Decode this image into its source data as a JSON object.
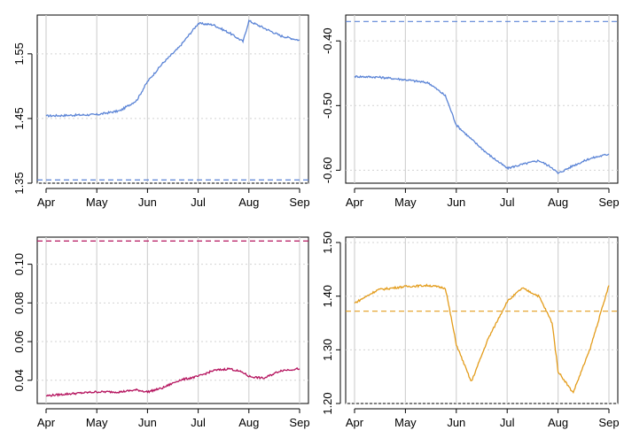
{
  "chart_data": [
    {
      "type": "line",
      "color": "#5b84d6",
      "x_ticks": [
        "Apr",
        "May",
        "Jun",
        "Jul",
        "Aug",
        "Sep"
      ],
      "x_range": [
        "Apr",
        "Sep"
      ],
      "y_ticks": [
        1.35,
        1.45,
        1.55
      ],
      "ylim": [
        1.35,
        1.61
      ],
      "grid": true,
      "reference_line": 1.355,
      "series": [
        {
          "x": [
            "Apr",
            "Apr 15",
            "May 01",
            "May 15",
            "May 25",
            "Jun 01",
            "Jun 10",
            "Jun 20",
            "Jul 01",
            "Jul 10",
            "Jul 20",
            "Jul 28",
            "Aug 01",
            "Aug 10",
            "Aug 20",
            "Sep"
          ],
          "values": [
            1.454,
            1.455,
            1.456,
            1.462,
            1.478,
            1.507,
            1.535,
            1.56,
            1.597,
            1.595,
            1.582,
            1.569,
            1.601,
            1.59,
            1.578,
            1.571
          ]
        }
      ]
    },
    {
      "type": "line",
      "color": "#5b84d6",
      "x_ticks": [
        "Apr",
        "May",
        "Jun",
        "Jul",
        "Aug",
        "Sep"
      ],
      "x_range": [
        "Apr",
        "Sep"
      ],
      "y_ticks": [
        -0.6,
        -0.5,
        -0.4
      ],
      "ylim": [
        -0.62,
        -0.36
      ],
      "grid": true,
      "reference_line": -0.37,
      "series": [
        {
          "x": [
            "Apr",
            "Apr 15",
            "May 01",
            "May 15",
            "May 25",
            "Jun 01",
            "Jun 10",
            "Jun 20",
            "Jul 01",
            "Jul 10",
            "Jul 20",
            "Jul 28",
            "Aug 01",
            "Aug 10",
            "Aug 20",
            "Sep"
          ],
          "values": [
            -0.455,
            -0.456,
            -0.46,
            -0.465,
            -0.485,
            -0.53,
            -0.552,
            -0.575,
            -0.597,
            -0.591,
            -0.585,
            -0.596,
            -0.605,
            -0.593,
            -0.582,
            -0.575
          ]
        }
      ]
    },
    {
      "type": "line",
      "color": "#b5135e",
      "x_ticks": [
        "Apr",
        "May",
        "Jun",
        "Jul",
        "Aug",
        "Sep"
      ],
      "x_range": [
        "Apr",
        "Sep"
      ],
      "y_ticks": [
        0.04,
        0.06,
        0.08,
        0.1
      ],
      "ylim": [
        0.028,
        0.114
      ],
      "grid": true,
      "reference_line": 0.112,
      "series": [
        {
          "x": [
            "Apr",
            "Apr 15",
            "May 01",
            "May 15",
            "May 25",
            "Jun 01",
            "Jun 10",
            "Jun 20",
            "Jul 01",
            "Jul 10",
            "Jul 20",
            "Jul 28",
            "Aug 01",
            "Aug 10",
            "Aug 20",
            "Sep"
          ],
          "values": [
            0.032,
            0.033,
            0.034,
            0.034,
            0.035,
            0.034,
            0.036,
            0.04,
            0.042,
            0.045,
            0.046,
            0.044,
            0.042,
            0.041,
            0.045,
            0.046
          ]
        }
      ]
    },
    {
      "type": "line",
      "color": "#e39c1b",
      "x_ticks": [
        "Apr",
        "May",
        "Jun",
        "Jul",
        "Aug",
        "Sep"
      ],
      "x_range": [
        "Apr",
        "Sep"
      ],
      "y_ticks": [
        1.2,
        1.3,
        1.4,
        1.5
      ],
      "ylim": [
        1.2,
        1.51
      ],
      "grid": true,
      "reference_line": 1.372,
      "series": [
        {
          "x": [
            "Apr",
            "Apr 15",
            "May 01",
            "May 15",
            "May 25",
            "Jun 01",
            "Jun 10",
            "Jun 20",
            "Jul 01",
            "Jul 10",
            "Jul 20",
            "Jul 28",
            "Aug 01",
            "Aug 10",
            "Aug 20",
            "Sep"
          ],
          "values": [
            1.387,
            1.412,
            1.418,
            1.42,
            1.415,
            1.31,
            1.24,
            1.32,
            1.39,
            1.415,
            1.4,
            1.35,
            1.26,
            1.22,
            1.3,
            1.42
          ]
        }
      ]
    }
  ]
}
